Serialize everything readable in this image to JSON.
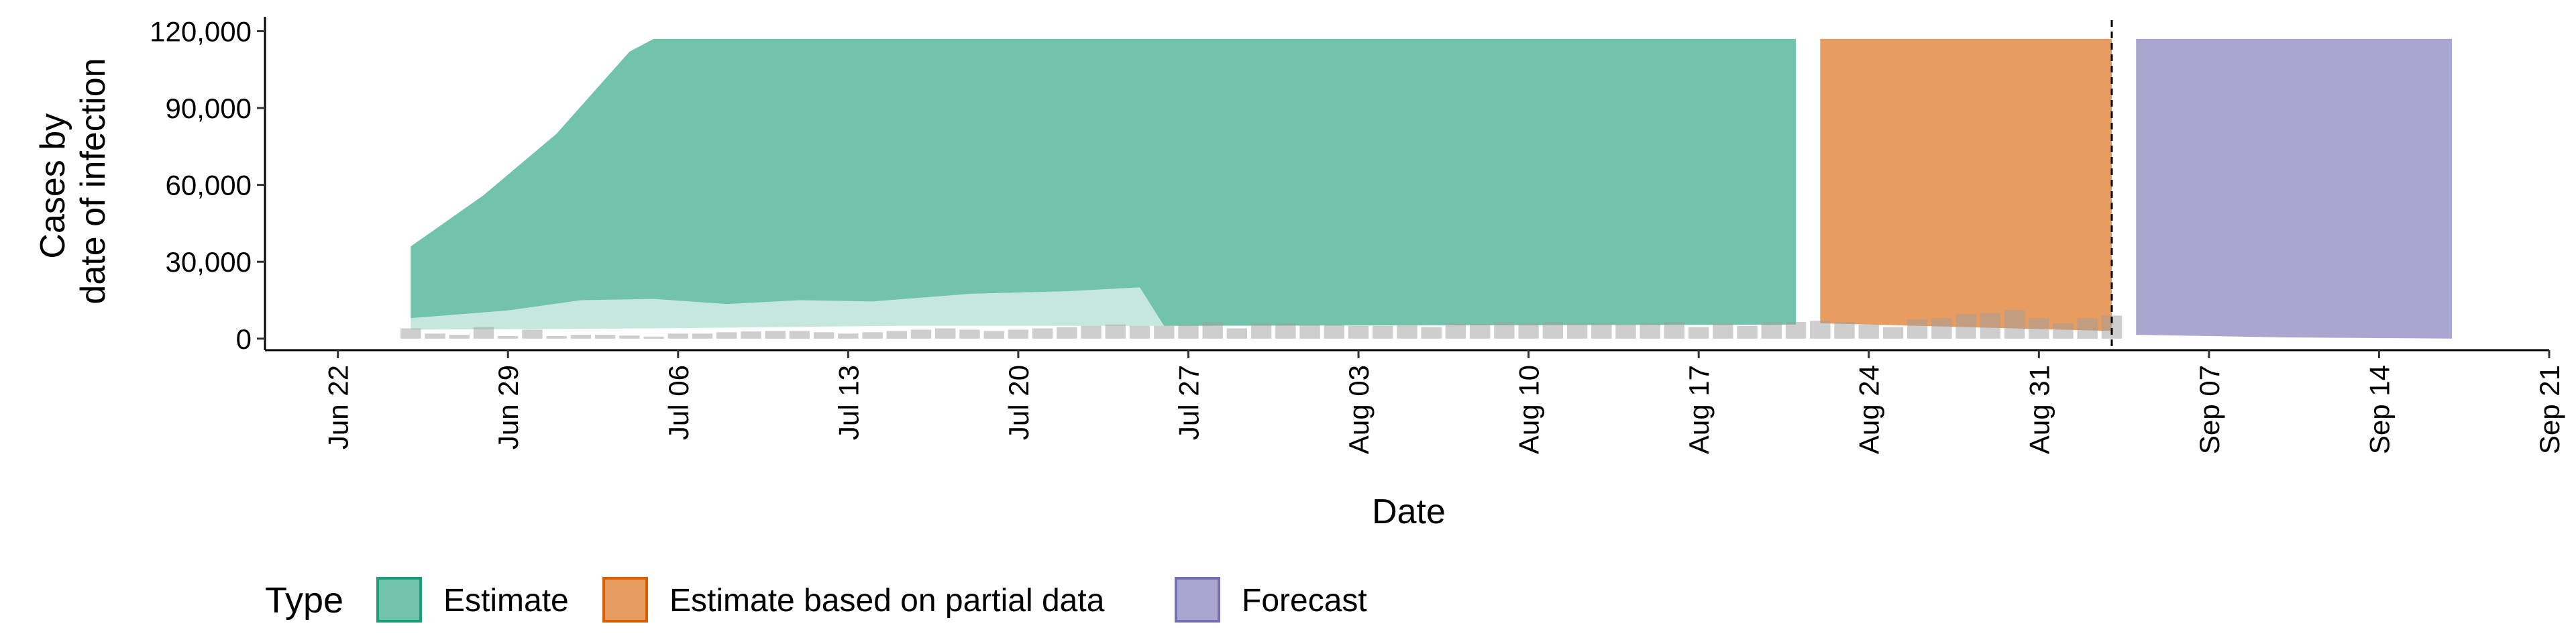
{
  "chart_data": {
    "type": "area",
    "xlabel": "Date",
    "ylabel": [
      "Cases by",
      "date of infection"
    ],
    "y_ticks": [
      0,
      30000,
      60000,
      90000,
      120000
    ],
    "y_tick_labels": [
      "0",
      "30,000",
      "60,000",
      "90,000",
      "120,000"
    ],
    "ylim": [
      -4500,
      123000
    ],
    "x_range": [
      "2020-06-19",
      "2020-09-21"
    ],
    "x_ticks": [
      "2020-06-22",
      "2020-06-29",
      "2020-07-06",
      "2020-07-13",
      "2020-07-20",
      "2020-07-27",
      "2020-08-03",
      "2020-08-10",
      "2020-08-17",
      "2020-08-24",
      "2020-08-31",
      "2020-09-07",
      "2020-09-14",
      "2020-09-21"
    ],
    "x_tick_labels": [
      "Jun 22",
      "Jun 29",
      "Jul 06",
      "Jul 13",
      "Jul 20",
      "Jul 27",
      "Aug 03",
      "Aug 10",
      "Aug 17",
      "Aug 24",
      "Aug 31",
      "Sep 07",
      "Sep 14",
      "Sep 21"
    ],
    "vline_date": "2020-09-03",
    "legend_title": "Type",
    "legend_position": "bottom",
    "grid": false,
    "series": [
      {
        "name": "Estimate",
        "color": "#1B9E77",
        "outer_upper": [
          [
            "2020-06-25",
            36000
          ],
          [
            "2020-06-28",
            56000
          ],
          [
            "2020-07-01",
            80000
          ],
          [
            "2020-07-04",
            112000
          ],
          [
            "2020-07-05",
            117000
          ],
          [
            "2020-08-21",
            117000
          ]
        ],
        "outer_lower": [
          [
            "2020-06-25",
            8000
          ],
          [
            "2020-06-29",
            11000
          ],
          [
            "2020-07-02",
            15000
          ],
          [
            "2020-07-05",
            15500
          ],
          [
            "2020-07-08",
            13500
          ],
          [
            "2020-07-11",
            15000
          ],
          [
            "2020-07-14",
            14500
          ],
          [
            "2020-07-18",
            17500
          ],
          [
            "2020-07-22",
            18500
          ],
          [
            "2020-07-25",
            20000
          ],
          [
            "2020-07-26",
            5000
          ],
          [
            "2020-08-21",
            5500
          ]
        ],
        "inner_upper": [
          [
            "2020-06-25",
            8000
          ],
          [
            "2020-06-29",
            11000
          ],
          [
            "2020-07-02",
            15000
          ],
          [
            "2020-07-05",
            15500
          ],
          [
            "2020-07-08",
            13500
          ],
          [
            "2020-07-11",
            15000
          ],
          [
            "2020-07-14",
            14500
          ],
          [
            "2020-07-18",
            17500
          ],
          [
            "2020-07-22",
            18500
          ],
          [
            "2020-07-25",
            20000
          ],
          [
            "2020-07-26",
            5000
          ]
        ],
        "inner_lower": [
          [
            "2020-06-25",
            3500
          ],
          [
            "2020-07-05",
            4000
          ],
          [
            "2020-07-15",
            5000
          ],
          [
            "2020-07-26",
            5000
          ]
        ]
      },
      {
        "name": "Estimate based on partial data",
        "color": "#D95F02",
        "outer_upper": [
          [
            "2020-08-22",
            117000
          ],
          [
            "2020-09-03",
            117000
          ]
        ],
        "outer_lower": [
          [
            "2020-08-22",
            6000
          ],
          [
            "2020-09-03",
            3000
          ]
        ]
      },
      {
        "name": "Forecast",
        "color": "#7570B3",
        "outer_upper": [
          [
            "2020-09-04",
            117000
          ],
          [
            "2020-09-17",
            117000
          ]
        ],
        "outer_lower": [
          [
            "2020-09-04",
            1500
          ],
          [
            "2020-09-10",
            500
          ],
          [
            "2020-09-17",
            0
          ]
        ]
      }
    ],
    "reported_cases": {
      "start": "2020-06-25",
      "values": [
        4000,
        2000,
        1500,
        4500,
        1000,
        3500,
        1000,
        1500,
        1500,
        1200,
        800,
        2000,
        2000,
        2500,
        2800,
        3000,
        3000,
        2500,
        2000,
        2500,
        3000,
        3500,
        4000,
        3500,
        3000,
        3500,
        4000,
        4500,
        5000,
        5500,
        5000,
        5000,
        5500,
        6500,
        4000,
        6000,
        6000,
        5500,
        5500,
        5000,
        5000,
        5500,
        4500,
        6000,
        6000,
        6500,
        6000,
        6500,
        6000,
        6000,
        5500,
        6000,
        6500,
        4500,
        6000,
        5000,
        6500,
        6500,
        7000,
        6500,
        5500,
        4500,
        7500,
        8000,
        9500,
        10000,
        11000,
        8000,
        6000,
        8000,
        9000
      ]
    }
  }
}
